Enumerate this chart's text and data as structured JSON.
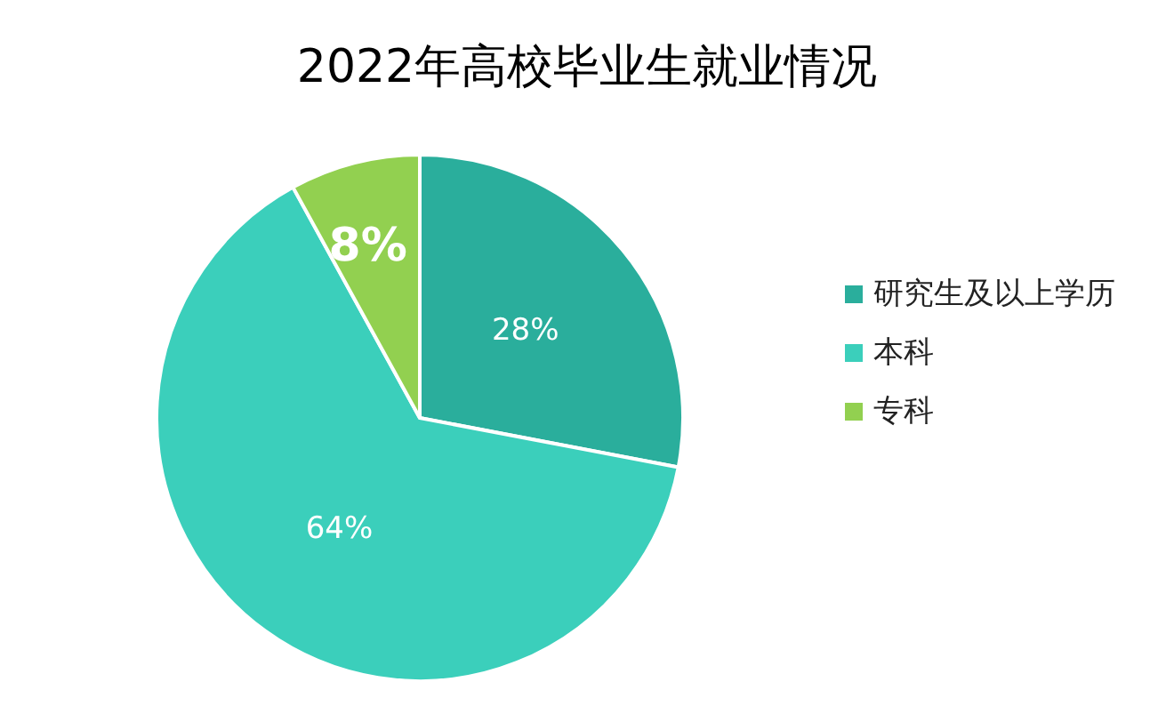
{
  "chart_data": {
    "type": "pie",
    "title": "2022年高校毕业生就业情况",
    "categories": [
      "研究生及以上学历",
      "本科",
      "专科"
    ],
    "values": [
      28,
      64,
      8
    ],
    "value_labels": [
      "28%",
      "64%",
      "8%"
    ],
    "colors": [
      "#2aae9c",
      "#3bcfbb",
      "#92d050"
    ],
    "legend": "right"
  }
}
